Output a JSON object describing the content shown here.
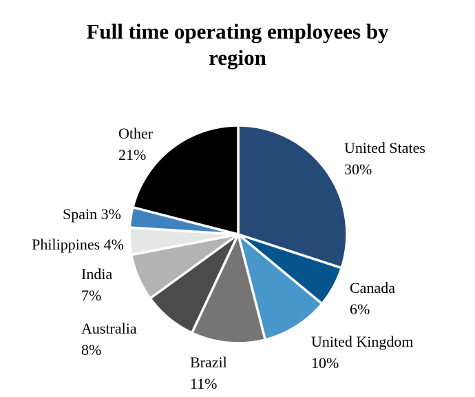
{
  "chart_data": {
    "type": "pie",
    "title_lines": [
      "Full time operating employees by",
      "region"
    ],
    "categories": [
      "United States",
      "Canada",
      "United Kingdom",
      "Brazil",
      "Australia",
      "India",
      "Philippines",
      "Spain",
      "Other"
    ],
    "values": [
      30,
      6,
      10,
      11,
      8,
      7,
      4,
      3,
      21
    ],
    "value_labels": [
      "30%",
      "6%",
      "10%",
      "11%",
      "8%",
      "7%",
      "4%",
      "3%",
      "21%"
    ],
    "colors": [
      "#264a78",
      "#05558c",
      "#4797cb",
      "#757575",
      "#4b4b4b",
      "#b3b3b3",
      "#e6e6e6",
      "#3f82c0",
      "#000000"
    ],
    "start_angle_deg": 0,
    "direction": "clockwise",
    "legend": "none"
  }
}
